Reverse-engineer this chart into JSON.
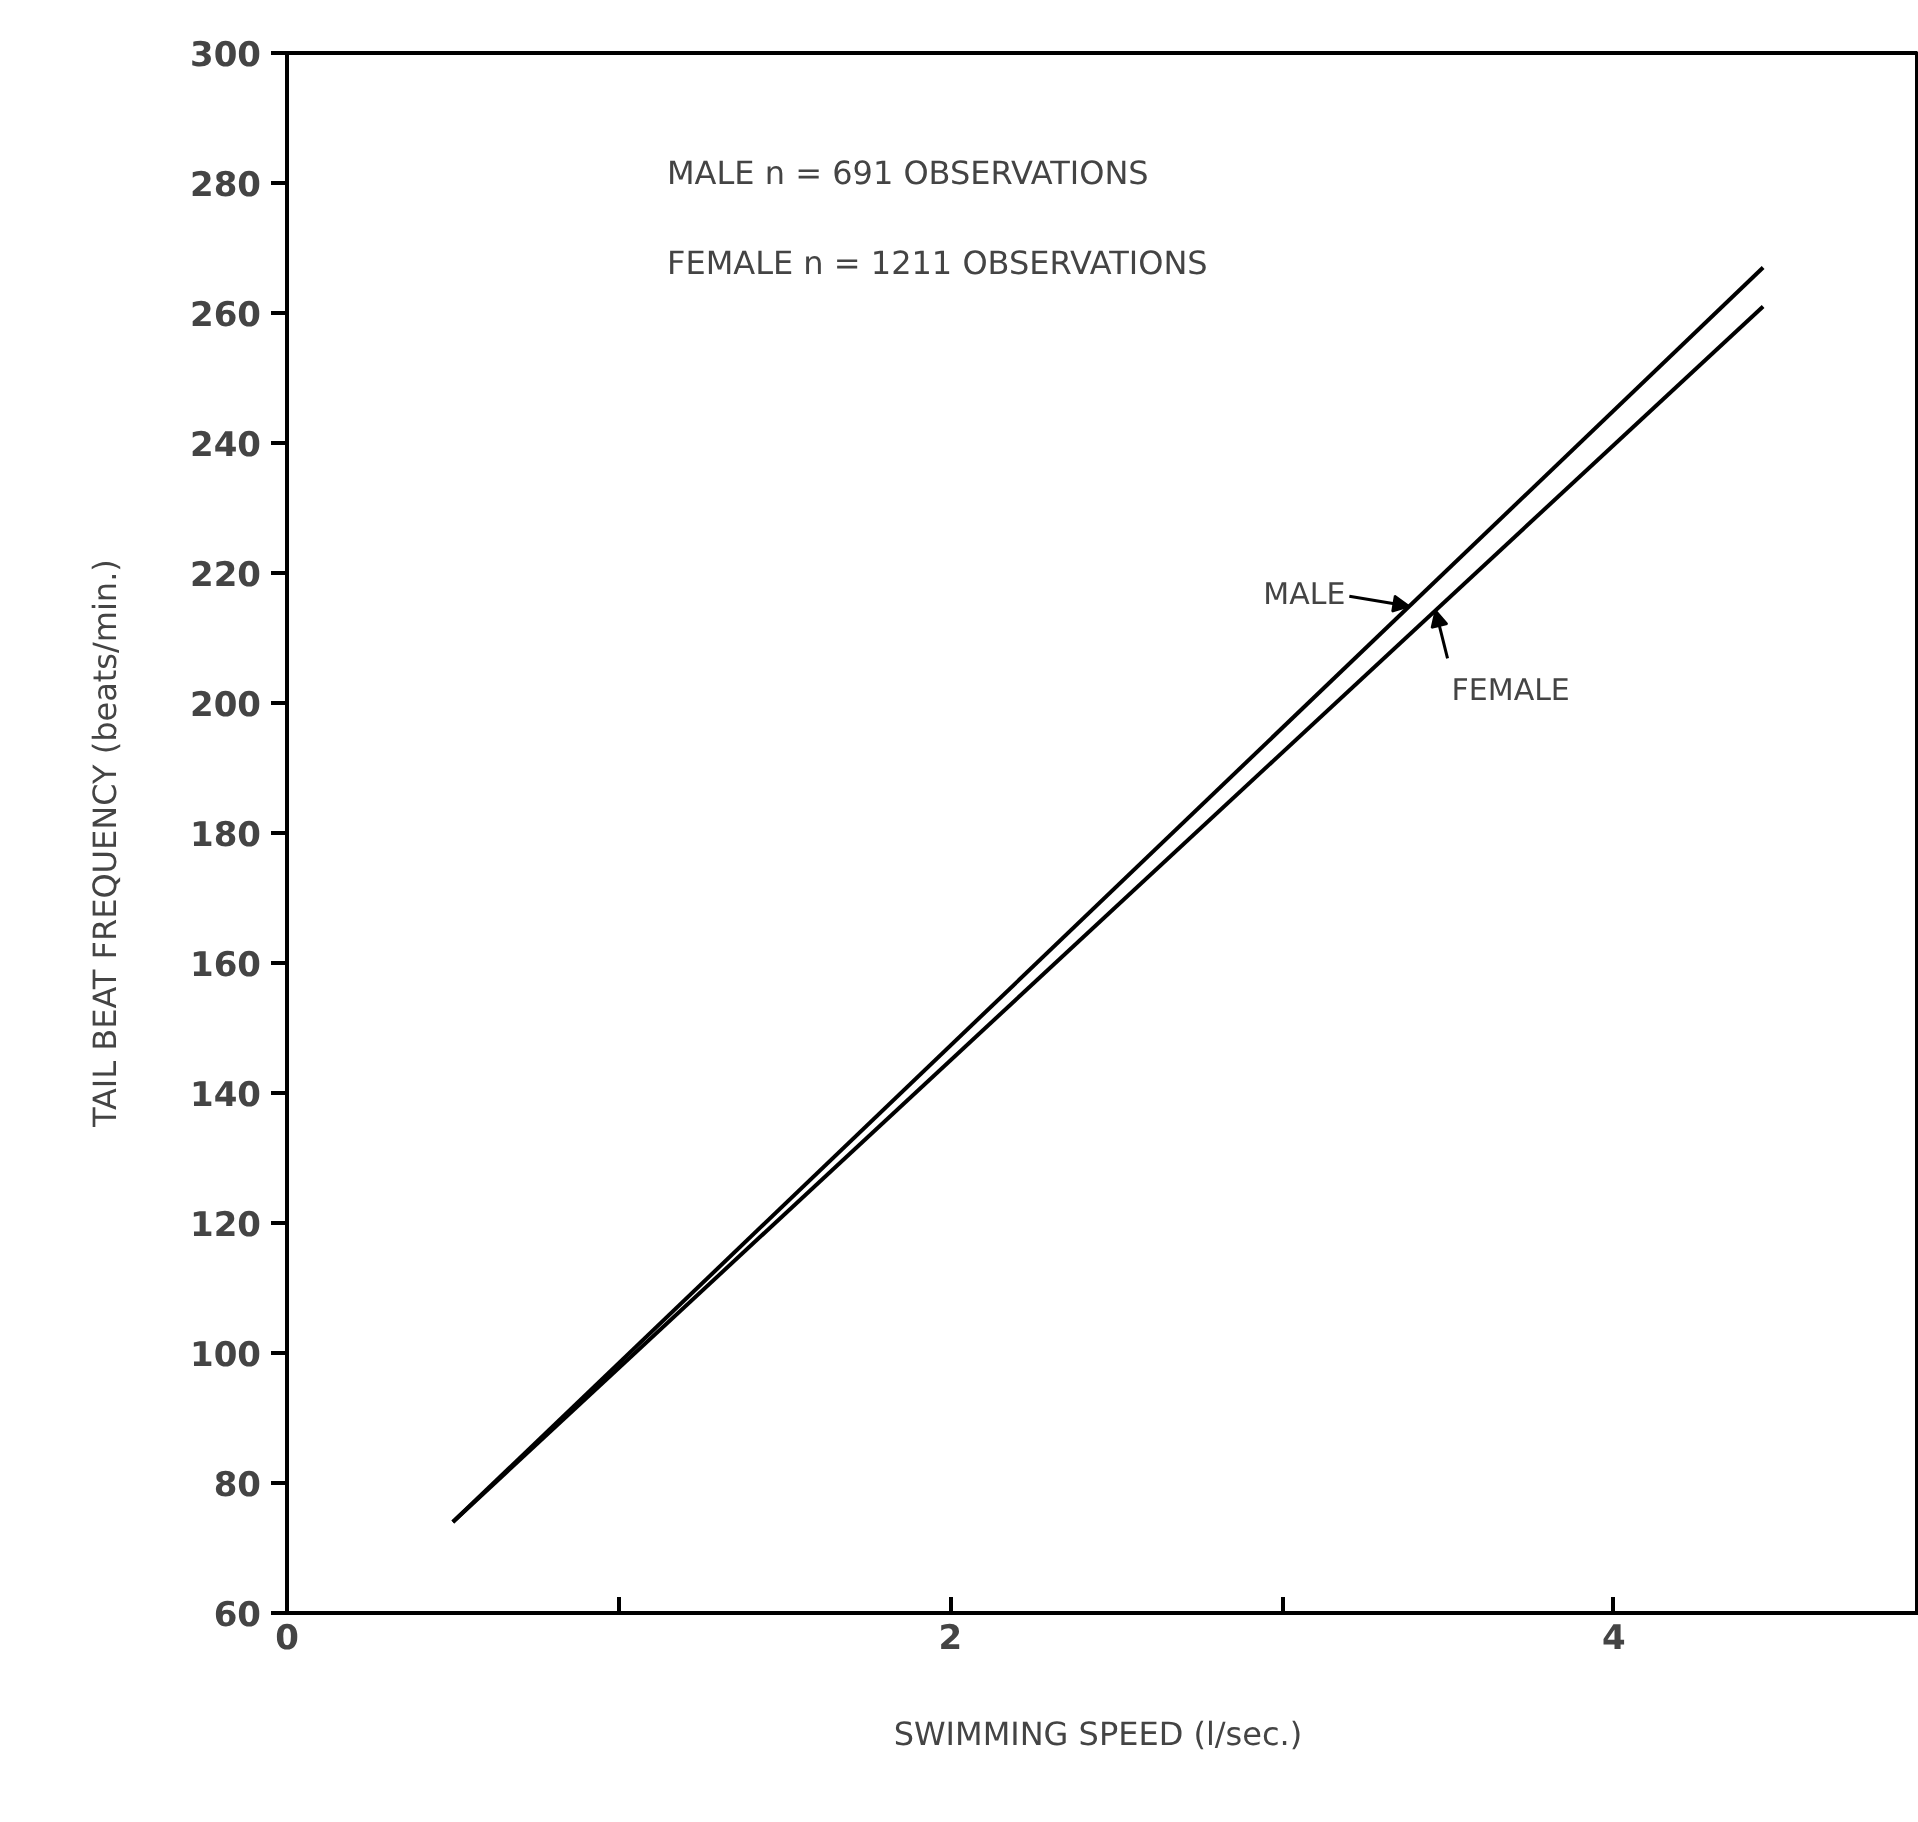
{
  "chart_data": {
    "type": "line",
    "xlabel": "SWIMMING SPEED  (l/sec.)",
    "ylabel": "TAIL BEAT FREQUENCY   (beats/min.)",
    "xlim": [
      0,
      4.92
    ],
    "ylim": [
      60,
      300
    ],
    "xticks": [
      0,
      {
        "value": 1,
        "label": null
      },
      2,
      {
        "value": 3,
        "label": null
      },
      4
    ],
    "yticks": [
      60,
      80,
      100,
      120,
      140,
      160,
      180,
      200,
      220,
      240,
      260,
      280,
      300
    ],
    "grid": false,
    "marker": "none",
    "x": [
      0.5,
      4.45
    ],
    "line_style": "solid",
    "series": [
      {
        "name": "MALE",
        "color": "#000000",
        "values": [
          74,
          267
        ]
      },
      {
        "name": "FEMALE",
        "color": "#000000",
        "values": [
          74,
          261
        ]
      }
    ],
    "annotations": [
      "MALE     n =   691 OBSERVATIONS",
      "FEMALE  n = 1211 OBSERVATIONS"
    ]
  }
}
